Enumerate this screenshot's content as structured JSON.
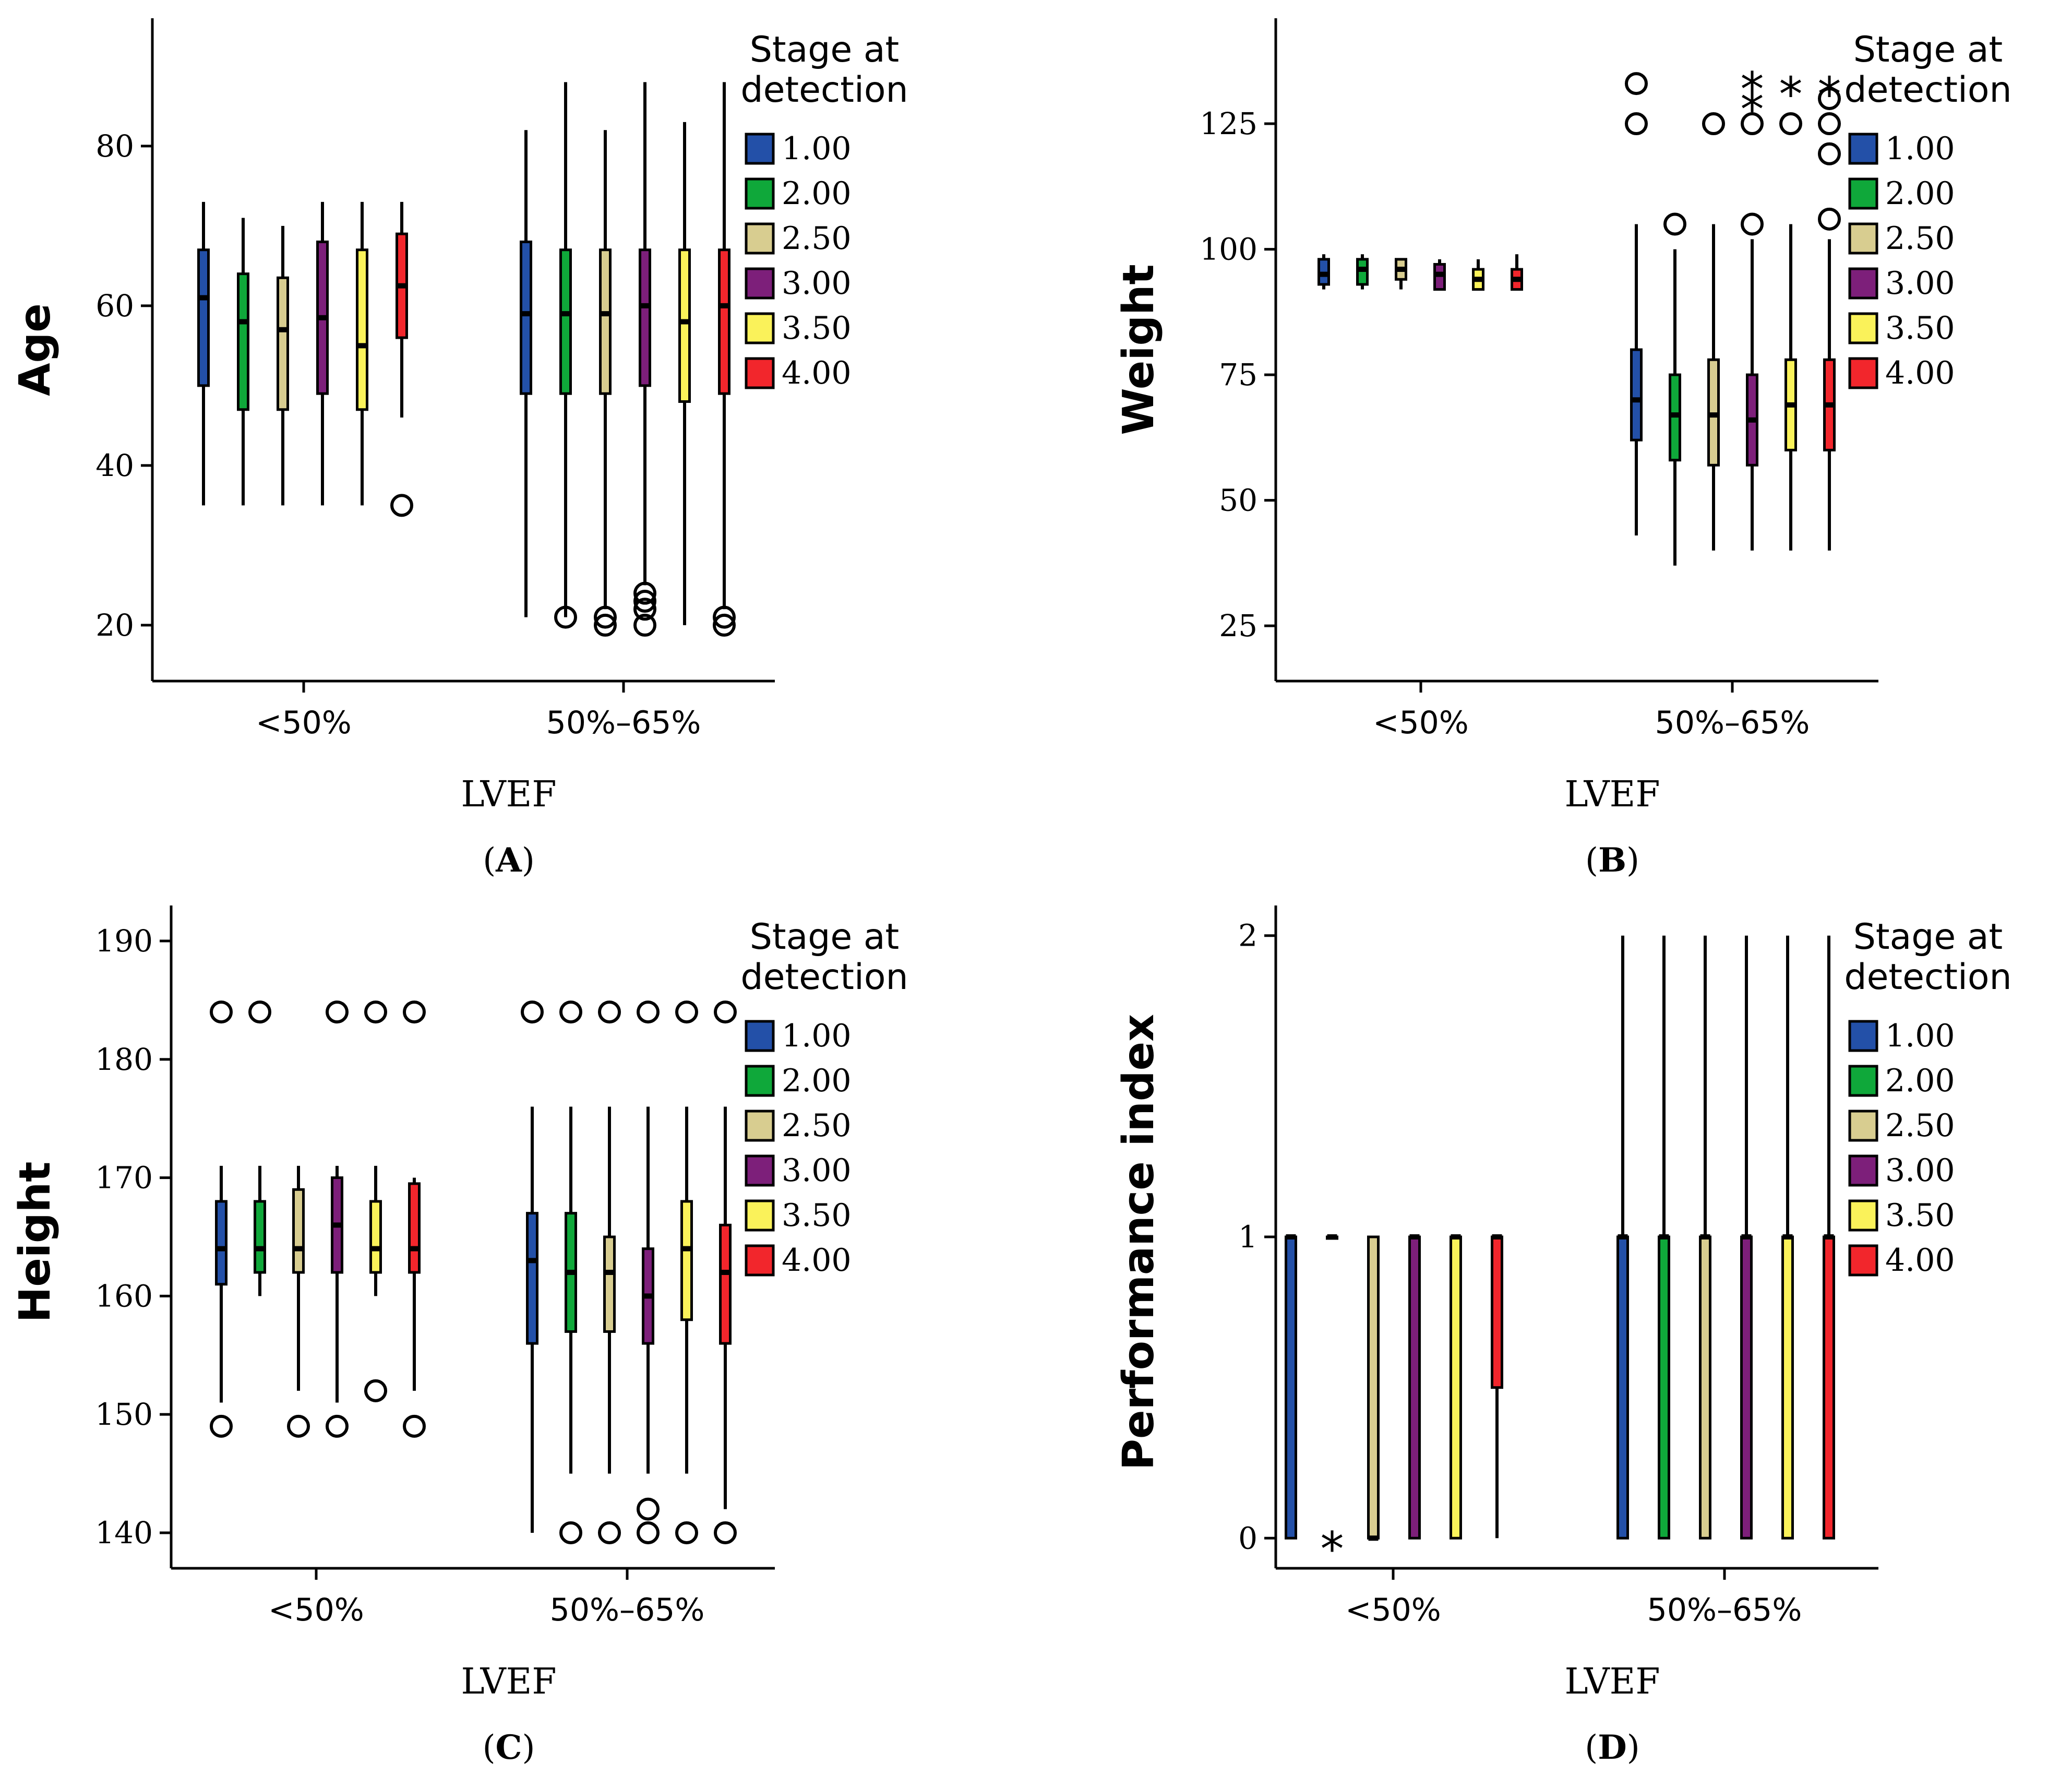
{
  "stage_colors": [
    "#2350a8",
    "#0fa83a",
    "#d8cd90",
    "#7d1f7a",
    "#faf25a",
    "#f2262c"
  ],
  "chart_data": [
    {
      "id": "A",
      "type": "boxplot",
      "panel_label": "A",
      "ylabel": "Age",
      "xlabel": "LVEF",
      "ylim": [
        13,
        96
      ],
      "yticks": [
        20,
        40,
        60,
        80
      ],
      "categories": [
        "<50%",
        "50%–65%"
      ],
      "legend": {
        "title_line1": "Stage at",
        "title_line2": "detection",
        "entries": [
          "1.00",
          "2.00",
          "2.50",
          "3.00",
          "3.50",
          "4.00"
        ]
      },
      "groups": [
        {
          "category": "<50%",
          "series": [
            {
              "stage": "1.00",
              "min": 35,
              "q1": 50,
              "median": 61,
              "q3": 67,
              "max": 73,
              "outliers": [],
              "extremes": []
            },
            {
              "stage": "2.00",
              "min": 35,
              "q1": 47,
              "median": 58,
              "q3": 64,
              "max": 71,
              "outliers": [],
              "extremes": []
            },
            {
              "stage": "2.50",
              "min": 35,
              "q1": 47,
              "median": 57,
              "q3": 63.5,
              "max": 70,
              "outliers": [],
              "extremes": []
            },
            {
              "stage": "3.00",
              "min": 35,
              "q1": 49,
              "median": 58.5,
              "q3": 68,
              "max": 73,
              "outliers": [],
              "extremes": []
            },
            {
              "stage": "3.50",
              "min": 35,
              "q1": 47,
              "median": 55,
              "q3": 67,
              "max": 73,
              "outliers": [],
              "extremes": []
            },
            {
              "stage": "4.00",
              "min": 46,
              "q1": 56,
              "median": 62.5,
              "q3": 69,
              "max": 73,
              "outliers": [
                35
              ],
              "extremes": []
            }
          ]
        },
        {
          "category": "50%–65%",
          "series": [
            {
              "stage": "1.00",
              "min": 21,
              "q1": 49,
              "median": 59,
              "q3": 68,
              "max": 82,
              "outliers": [],
              "extremes": []
            },
            {
              "stage": "2.00",
              "min": 21,
              "q1": 49,
              "median": 59,
              "q3": 67,
              "max": 88,
              "outliers": [
                21
              ],
              "extremes": []
            },
            {
              "stage": "2.50",
              "min": 22,
              "q1": 49,
              "median": 59,
              "q3": 67,
              "max": 82,
              "outliers": [
                20,
                21
              ],
              "extremes": []
            },
            {
              "stage": "3.00",
              "min": 25,
              "q1": 50,
              "median": 60,
              "q3": 67,
              "max": 88,
              "outliers": [
                20,
                22,
                23,
                24
              ],
              "extremes": []
            },
            {
              "stage": "3.50",
              "min": 20,
              "q1": 48,
              "median": 58,
              "q3": 67,
              "max": 83,
              "outliers": [],
              "extremes": []
            },
            {
              "stage": "4.00",
              "min": 22,
              "q1": 49,
              "median": 60,
              "q3": 67,
              "max": 88,
              "outliers": [
                20,
                21
              ],
              "extremes": []
            }
          ]
        }
      ]
    },
    {
      "id": "B",
      "type": "boxplot",
      "panel_label": "B",
      "ylabel": "Weight",
      "xlabel": "LVEF",
      "ylim": [
        14,
        146
      ],
      "yticks": [
        25,
        50,
        75,
        100,
        125
      ],
      "categories": [
        "<50%",
        "50%–65%"
      ],
      "legend": {
        "title_line1": "Stage at",
        "title_line2": "detection",
        "entries": [
          "1.00",
          "2.00",
          "2.50",
          "3.00",
          "3.50",
          "4.00"
        ]
      },
      "groups": [
        {
          "category": "<50%",
          "series": [
            {
              "stage": "1.00",
              "min": 92,
              "q1": 93,
              "median": 95,
              "q3": 98,
              "max": 99,
              "outliers": [],
              "extremes": []
            },
            {
              "stage": "2.00",
              "min": 92,
              "q1": 93,
              "median": 96,
              "q3": 98,
              "max": 99,
              "outliers": [],
              "extremes": []
            },
            {
              "stage": "2.50",
              "min": 92,
              "q1": 94,
              "median": 96,
              "q3": 98,
              "max": 98,
              "outliers": [],
              "extremes": []
            },
            {
              "stage": "3.00",
              "min": 92,
              "q1": 92,
              "median": 95,
              "q3": 97,
              "max": 98,
              "outliers": [],
              "extremes": []
            },
            {
              "stage": "3.50",
              "min": 92,
              "q1": 92,
              "median": 94,
              "q3": 96,
              "max": 98,
              "outliers": [],
              "extremes": []
            },
            {
              "stage": "4.00",
              "min": 92,
              "q1": 92,
              "median": 94,
              "q3": 96,
              "max": 99,
              "outliers": [],
              "extremes": []
            }
          ]
        },
        {
          "category": "50%–65%",
          "series": [
            {
              "stage": "1.00",
              "min": 43,
              "q1": 62,
              "median": 70,
              "q3": 80,
              "max": 105,
              "outliers": [
                125,
                133
              ],
              "extremes": []
            },
            {
              "stage": "2.00",
              "min": 37,
              "q1": 58,
              "median": 67,
              "q3": 75,
              "max": 100,
              "outliers": [
                105
              ],
              "extremes": []
            },
            {
              "stage": "2.50",
              "min": 40,
              "q1": 57,
              "median": 67,
              "q3": 78,
              "max": 105,
              "outliers": [
                125
              ],
              "extremes": []
            },
            {
              "stage": "3.00",
              "min": 40,
              "q1": 57,
              "median": 66,
              "q3": 75,
              "max": 102,
              "outliers": [
                105,
                125
              ],
              "extremes": [
                130,
                134
              ]
            },
            {
              "stage": "3.50",
              "min": 40,
              "q1": 60,
              "median": 69,
              "q3": 78,
              "max": 105,
              "outliers": [
                125
              ],
              "extremes": [
                133
              ]
            },
            {
              "stage": "4.00",
              "min": 40,
              "q1": 60,
              "median": 69,
              "q3": 78,
              "max": 102,
              "outliers": [
                106,
                119,
                125,
                130
              ],
              "extremes": [
                133
              ]
            }
          ]
        }
      ]
    },
    {
      "id": "C",
      "type": "boxplot",
      "panel_label": "C",
      "ylabel": "Height",
      "xlabel": "LVEF",
      "ylim": [
        137,
        193
      ],
      "yticks": [
        140,
        150,
        160,
        170,
        180,
        190
      ],
      "categories": [
        "<50%",
        "50%–65%"
      ],
      "legend": {
        "title_line1": "Stage at",
        "title_line2": "detection",
        "entries": [
          "1.00",
          "2.00",
          "2.50",
          "3.00",
          "3.50",
          "4.00"
        ]
      },
      "groups": [
        {
          "category": "<50%",
          "series": [
            {
              "stage": "1.00",
              "min": 151,
              "q1": 161,
              "median": 164,
              "q3": 168,
              "max": 171,
              "outliers": [
                149,
                184
              ],
              "extremes": []
            },
            {
              "stage": "2.00",
              "min": 160,
              "q1": 162,
              "median": 164,
              "q3": 168,
              "max": 171,
              "outliers": [
                184
              ],
              "extremes": []
            },
            {
              "stage": "2.50",
              "min": 152,
              "q1": 162,
              "median": 164,
              "q3": 169,
              "max": 171,
              "outliers": [
                149
              ],
              "extremes": []
            },
            {
              "stage": "3.00",
              "min": 151,
              "q1": 162,
              "median": 166,
              "q3": 170,
              "max": 171,
              "outliers": [
                149,
                184
              ],
              "extremes": []
            },
            {
              "stage": "3.50",
              "min": 160,
              "q1": 162,
              "median": 164,
              "q3": 168,
              "max": 171,
              "outliers": [
                152,
                184
              ],
              "extremes": []
            },
            {
              "stage": "4.00",
              "min": 152,
              "q1": 162,
              "median": 164,
              "q3": 169.5,
              "max": 170,
              "outliers": [
                149,
                184
              ],
              "extremes": []
            }
          ]
        },
        {
          "category": "50%–65%",
          "series": [
            {
              "stage": "1.00",
              "min": 140,
              "q1": 156,
              "median": 163,
              "q3": 167,
              "max": 176,
              "outliers": [
                184
              ],
              "extremes": []
            },
            {
              "stage": "2.00",
              "min": 145,
              "q1": 157,
              "median": 162,
              "q3": 167,
              "max": 176,
              "outliers": [
                140,
                184
              ],
              "extremes": []
            },
            {
              "stage": "2.50",
              "min": 145,
              "q1": 157,
              "median": 162,
              "q3": 165,
              "max": 176,
              "outliers": [
                140,
                184
              ],
              "extremes": []
            },
            {
              "stage": "3.00",
              "min": 145,
              "q1": 156,
              "median": 160,
              "q3": 164,
              "max": 176,
              "outliers": [
                140,
                142,
                184
              ],
              "extremes": []
            },
            {
              "stage": "3.50",
              "min": 145,
              "q1": 158,
              "median": 164,
              "q3": 168,
              "max": 176,
              "outliers": [
                140,
                184
              ],
              "extremes": []
            },
            {
              "stage": "4.00",
              "min": 142,
              "q1": 156,
              "median": 162,
              "q3": 166,
              "max": 176,
              "outliers": [
                140,
                184
              ],
              "extremes": []
            }
          ]
        }
      ]
    },
    {
      "id": "D",
      "type": "boxplot",
      "panel_label": "D",
      "ylabel": "Performance index",
      "xlabel": "LVEF",
      "ylim": [
        -0.1,
        2.1
      ],
      "yticks": [
        0,
        1,
        2
      ],
      "categories": [
        "<50%",
        "50%–65%"
      ],
      "legend": {
        "title_line1": "Stage at",
        "title_line2": "detection",
        "entries": [
          "1.00",
          "2.00",
          "2.50",
          "3.00",
          "3.50",
          "4.00"
        ]
      },
      "groups": [
        {
          "category": "<50%",
          "series": [
            {
              "stage": "1.00",
              "min": 0,
              "q1": 0,
              "median": 1,
              "q3": 1,
              "max": 1,
              "outliers": [],
              "extremes": []
            },
            {
              "stage": "2.00",
              "min": 1,
              "q1": 1,
              "median": 1,
              "q3": 1,
              "max": 1,
              "outliers": [],
              "extremes": [
                0
              ]
            },
            {
              "stage": "2.50",
              "min": 0,
              "q1": 0,
              "median": 0,
              "q3": 1,
              "max": 1,
              "outliers": [],
              "extremes": []
            },
            {
              "stage": "3.00",
              "min": 0,
              "q1": 0,
              "median": 1,
              "q3": 1,
              "max": 1,
              "outliers": [],
              "extremes": []
            },
            {
              "stage": "3.50",
              "min": 0,
              "q1": 0,
              "median": 1,
              "q3": 1,
              "max": 1,
              "outliers": [],
              "extremes": []
            },
            {
              "stage": "4.00",
              "min": 0,
              "q1": 0.5,
              "median": 1,
              "q3": 1,
              "max": 1,
              "outliers": [],
              "extremes": []
            }
          ]
        },
        {
          "category": "50%–65%",
          "series": [
            {
              "stage": "1.00",
              "min": 0,
              "q1": 0,
              "median": 1,
              "q3": 1,
              "max": 2,
              "outliers": [],
              "extremes": []
            },
            {
              "stage": "2.00",
              "min": 0,
              "q1": 0,
              "median": 1,
              "q3": 1,
              "max": 2,
              "outliers": [],
              "extremes": []
            },
            {
              "stage": "2.50",
              "min": 0,
              "q1": 0,
              "median": 1,
              "q3": 1,
              "max": 2,
              "outliers": [],
              "extremes": []
            },
            {
              "stage": "3.00",
              "min": 0,
              "q1": 0,
              "median": 1,
              "q3": 1,
              "max": 2,
              "outliers": [],
              "extremes": []
            },
            {
              "stage": "3.50",
              "min": 0,
              "q1": 0,
              "median": 1,
              "q3": 1,
              "max": 2,
              "outliers": [],
              "extremes": []
            },
            {
              "stage": "4.00",
              "min": 0,
              "q1": 0,
              "median": 1,
              "q3": 1,
              "max": 2,
              "outliers": [],
              "extremes": []
            }
          ]
        }
      ]
    }
  ]
}
